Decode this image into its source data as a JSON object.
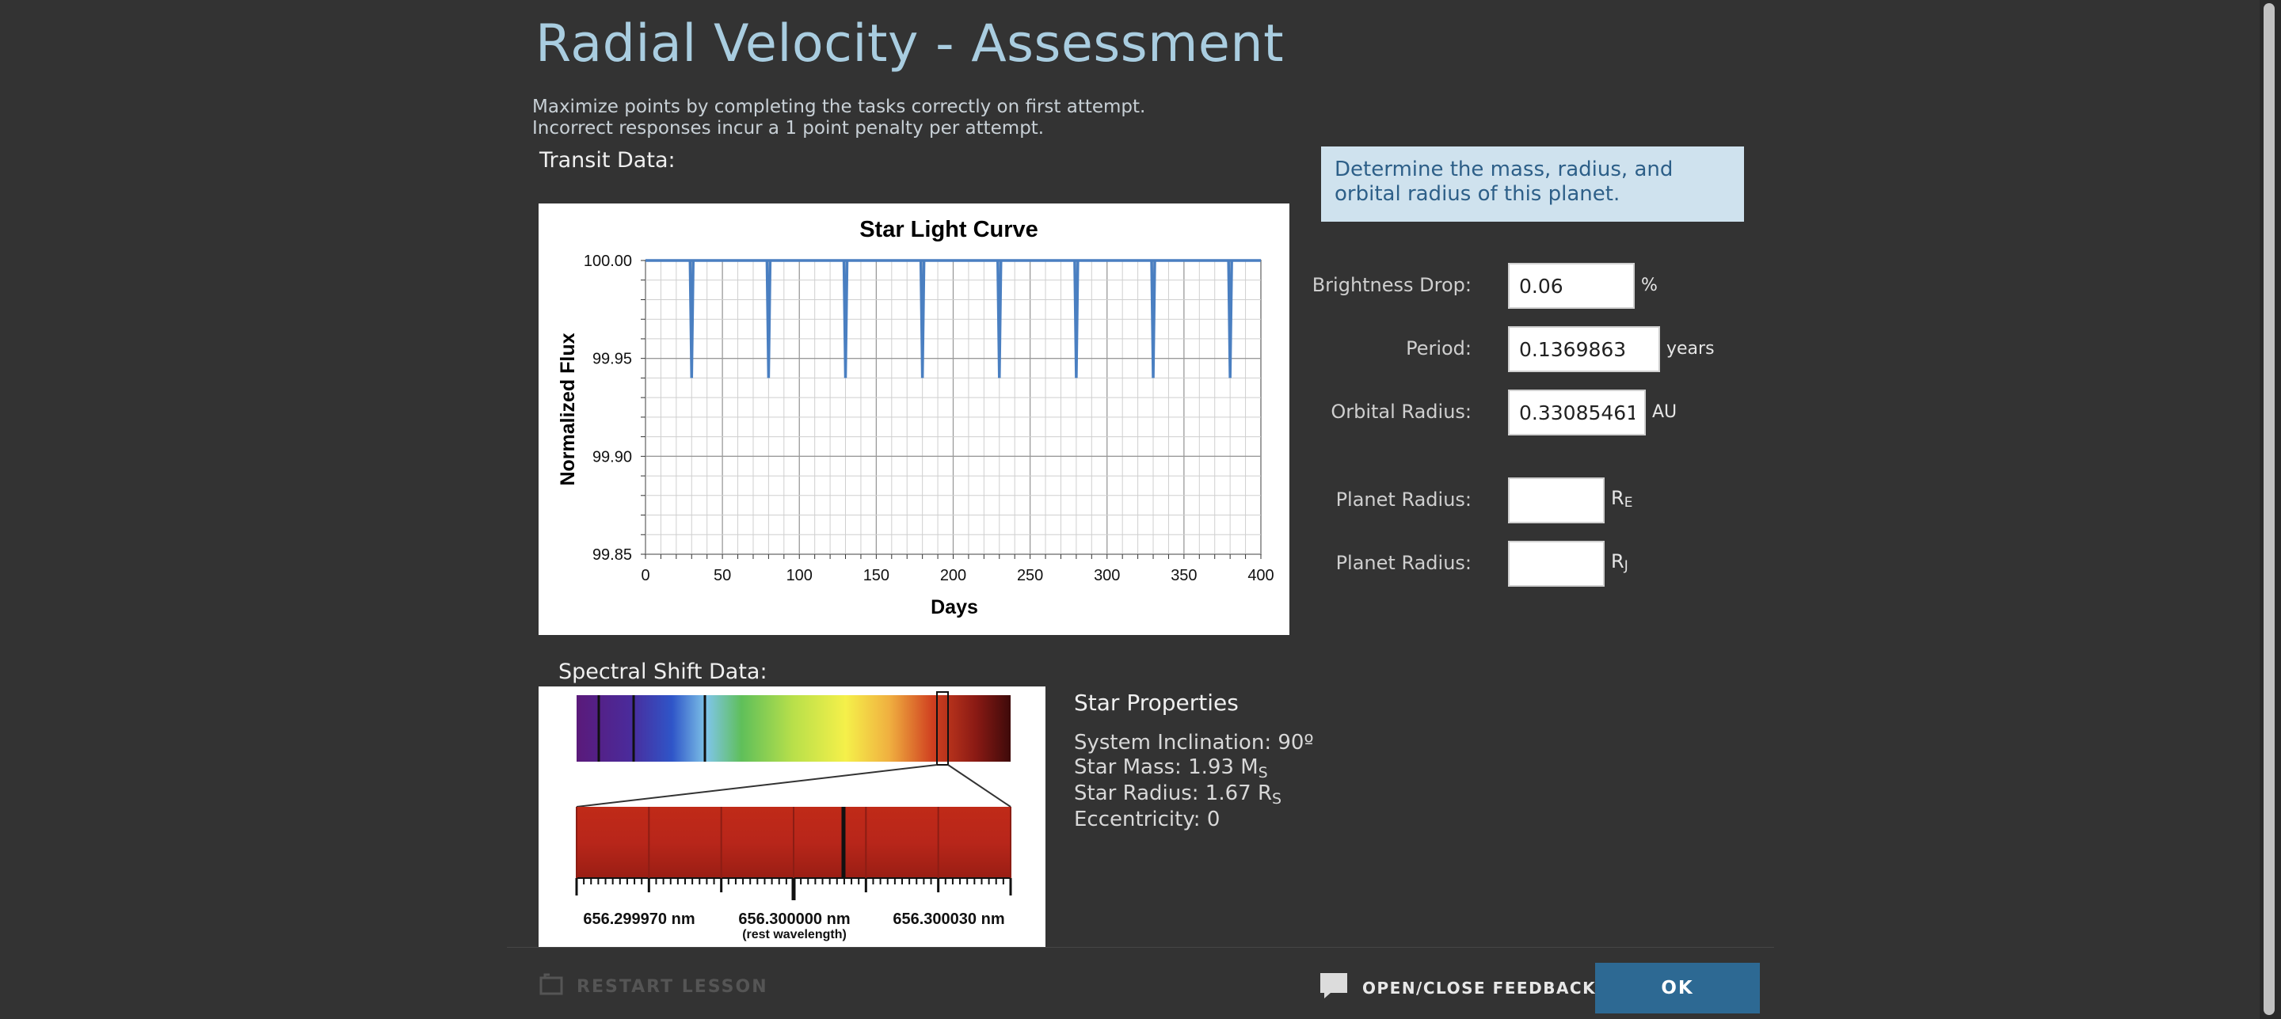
{
  "header": {
    "title": "Radial Velocity - Assessment",
    "instructions": [
      "Maximize points by completing the tasks correctly on first attempt.",
      "Incorrect responses incur a 1 point penalty per attempt."
    ]
  },
  "transit": {
    "label": "Transit Data:"
  },
  "chart_data": {
    "type": "line",
    "title": "Star Light Curve",
    "xlabel": "Days",
    "ylabel": "Normalized Flux",
    "xlim": [
      0,
      400
    ],
    "ylim": [
      99.85,
      100.0
    ],
    "xticks": [
      "0",
      "50",
      "100",
      "150",
      "200",
      "250",
      "300",
      "350",
      "400"
    ],
    "yticks": [
      "100.00",
      "99.95",
      "99.90",
      "99.85"
    ],
    "grid": true,
    "baseline": 100.0,
    "dip_value": 99.94,
    "dip_days": [
      30,
      80,
      130,
      180,
      230,
      280,
      330,
      380
    ],
    "line_color": "#4a7fc1"
  },
  "spectral": {
    "label": "Spectral Shift Data:",
    "ticks": [
      "656.299970 nm",
      "656.300000 nm",
      "656.300030 nm"
    ],
    "rest_note": "(rest wavelength)"
  },
  "star_properties": {
    "heading": "Star Properties",
    "inclination": "System Inclination: 90º",
    "mass_text": "Star Mass: 1.93 M",
    "mass_sub": "S",
    "radius_text": "Star Radius: 1.67 R",
    "radius_sub": "S",
    "eccentricity": "Eccentricity: 0"
  },
  "task": {
    "prompt": "Determine the mass, radius, and orbital radius of this planet."
  },
  "form": {
    "brightness_label": "Brightness Drop:",
    "brightness_value": "0.06",
    "brightness_unit": "%",
    "period_label": "Period:",
    "period_value": "0.1369863",
    "period_unit": "years",
    "orbital_label": "Orbital Radius:",
    "orbital_value": "0.33085461",
    "orbital_unit": "AU",
    "planet_radius_label": "Planet Radius:",
    "planet_radius_e_value": "",
    "planet_radius_e_unit": "R",
    "planet_radius_e_sub": "E",
    "planet_radius_j_value": "",
    "planet_radius_j_unit": "R",
    "planet_radius_j_sub": "J"
  },
  "footer": {
    "restart_label": "RESTART LESSON",
    "feedback_label": "OPEN/CLOSE FEEDBACK",
    "ok_label": "OK"
  },
  "icons": {
    "restart": "restart-icon",
    "feedback": "speech-bubble-icon"
  },
  "colors": {
    "background": "#333333",
    "title": "#a9cde0",
    "task_bg": "#cfe2ee",
    "ok_button": "#2d6993"
  }
}
